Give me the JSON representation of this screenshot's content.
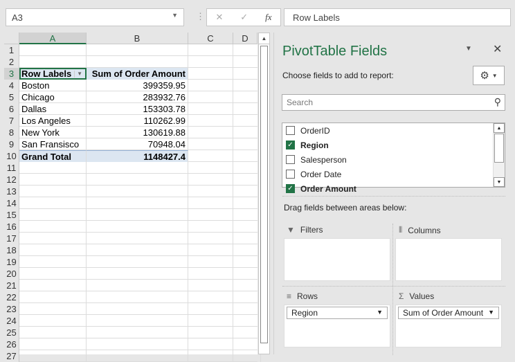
{
  "name_box": "A3",
  "formula_bar": {
    "cancel": "✕",
    "enter": "✓",
    "fx": "fx",
    "value": "Row Labels"
  },
  "columns": [
    "A",
    "B",
    "C",
    "D"
  ],
  "rows": [
    {
      "n": "1",
      "a": "",
      "b": ""
    },
    {
      "n": "2",
      "a": "",
      "b": ""
    },
    {
      "n": "3",
      "a": "Row Labels",
      "b": "Sum of Order Amount"
    },
    {
      "n": "4",
      "a": "Boston",
      "b": "399359.95"
    },
    {
      "n": "5",
      "a": "Chicago",
      "b": "283932.76"
    },
    {
      "n": "6",
      "a": "Dallas",
      "b": "153303.78"
    },
    {
      "n": "7",
      "a": "Los Angeles",
      "b": "110262.99"
    },
    {
      "n": "8",
      "a": "New York",
      "b": "130619.88"
    },
    {
      "n": "9",
      "a": "San Fransisco",
      "b": "70948.04"
    },
    {
      "n": "10",
      "a": "Grand Total",
      "b": "1148427.4"
    },
    {
      "n": "11"
    },
    {
      "n": "12"
    },
    {
      "n": "13"
    },
    {
      "n": "14"
    },
    {
      "n": "15"
    },
    {
      "n": "16"
    },
    {
      "n": "17"
    },
    {
      "n": "18"
    },
    {
      "n": "19"
    },
    {
      "n": "20"
    },
    {
      "n": "21"
    },
    {
      "n": "22"
    },
    {
      "n": "23"
    },
    {
      "n": "24"
    },
    {
      "n": "25"
    },
    {
      "n": "26"
    },
    {
      "n": "27"
    }
  ],
  "pane": {
    "title": "PivotTable Fields",
    "choose": "Choose fields to add to report:",
    "search_placeholder": "Search",
    "fields": [
      {
        "label": "OrderID",
        "checked": false
      },
      {
        "label": "Region",
        "checked": true
      },
      {
        "label": "Salesperson",
        "checked": false
      },
      {
        "label": "Order Date",
        "checked": false
      },
      {
        "label": "Order Amount",
        "checked": true
      }
    ],
    "drag": "Drag fields between areas below:",
    "areas": {
      "filters": "Filters",
      "columns": "Columns",
      "rows": "Rows",
      "values": "Values"
    },
    "rows_item": "Region",
    "values_item": "Sum of Order Amount"
  },
  "colors": {
    "accent": "#217346",
    "pivot_header": "#dce6f1"
  }
}
